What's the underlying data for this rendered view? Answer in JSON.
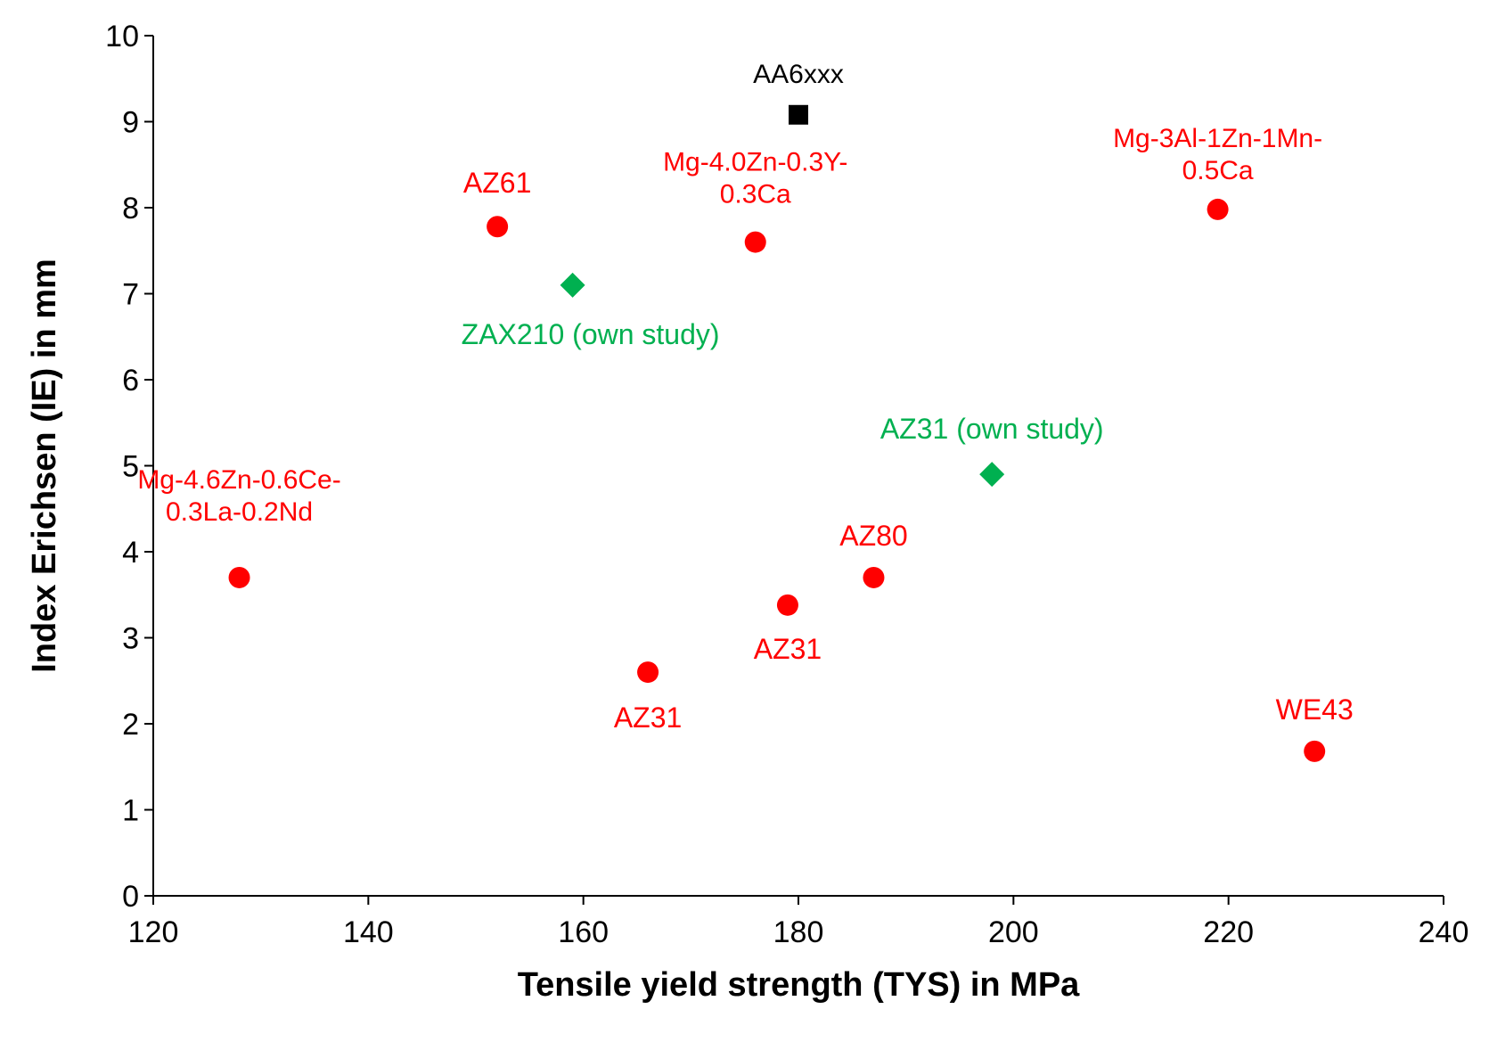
{
  "chart_data": {
    "type": "scatter",
    "title": "",
    "xlabel": "Tensile yield strength (TYS) in MPa",
    "ylabel": "Index Erichsen (IE) in mm",
    "xlim": [
      120,
      240
    ],
    "ylim": [
      0,
      10
    ],
    "xticks": [
      120,
      140,
      160,
      180,
      200,
      220,
      240
    ],
    "yticks": [
      0,
      1,
      2,
      3,
      4,
      5,
      6,
      7,
      8,
      9,
      10
    ],
    "grid": false,
    "colors": {
      "literature": "#ff0000",
      "own_study": "#00b050",
      "aluminium": "#000000"
    },
    "series": [
      {
        "name": "Mg alloys (literature)",
        "marker": "circle",
        "color": "#ff0000",
        "points": [
          {
            "x": 128,
            "y": 3.7,
            "label": [
              "Mg-4.6Zn-0.6Ce-",
              "0.3La-0.2Nd"
            ]
          },
          {
            "x": 152,
            "y": 7.78,
            "label": [
              "AZ61"
            ]
          },
          {
            "x": 166,
            "y": 2.6,
            "label": [
              "AZ31"
            ]
          },
          {
            "x": 176,
            "y": 7.6,
            "label": [
              "Mg-4.0Zn-0.3Y-",
              "0.3Ca"
            ]
          },
          {
            "x": 179,
            "y": 3.38,
            "label": [
              "AZ31"
            ]
          },
          {
            "x": 187,
            "y": 3.7,
            "label": [
              "AZ80"
            ]
          },
          {
            "x": 219,
            "y": 7.98,
            "label": [
              "Mg-3Al-1Zn-1Mn-",
              "0.5Ca"
            ]
          },
          {
            "x": 228,
            "y": 1.68,
            "label": [
              "WE43"
            ]
          }
        ]
      },
      {
        "name": "Own study",
        "marker": "diamond",
        "color": "#00b050",
        "points": [
          {
            "x": 159,
            "y": 7.1,
            "label": [
              "ZAX210 (own study)"
            ]
          },
          {
            "x": 198,
            "y": 4.9,
            "label": [
              "AZ31 (own study)"
            ]
          }
        ]
      },
      {
        "name": "Aluminium",
        "marker": "square",
        "color": "#000000",
        "points": [
          {
            "x": 180,
            "y": 9.08,
            "label": [
              "AA6xxx"
            ]
          }
        ]
      }
    ]
  }
}
